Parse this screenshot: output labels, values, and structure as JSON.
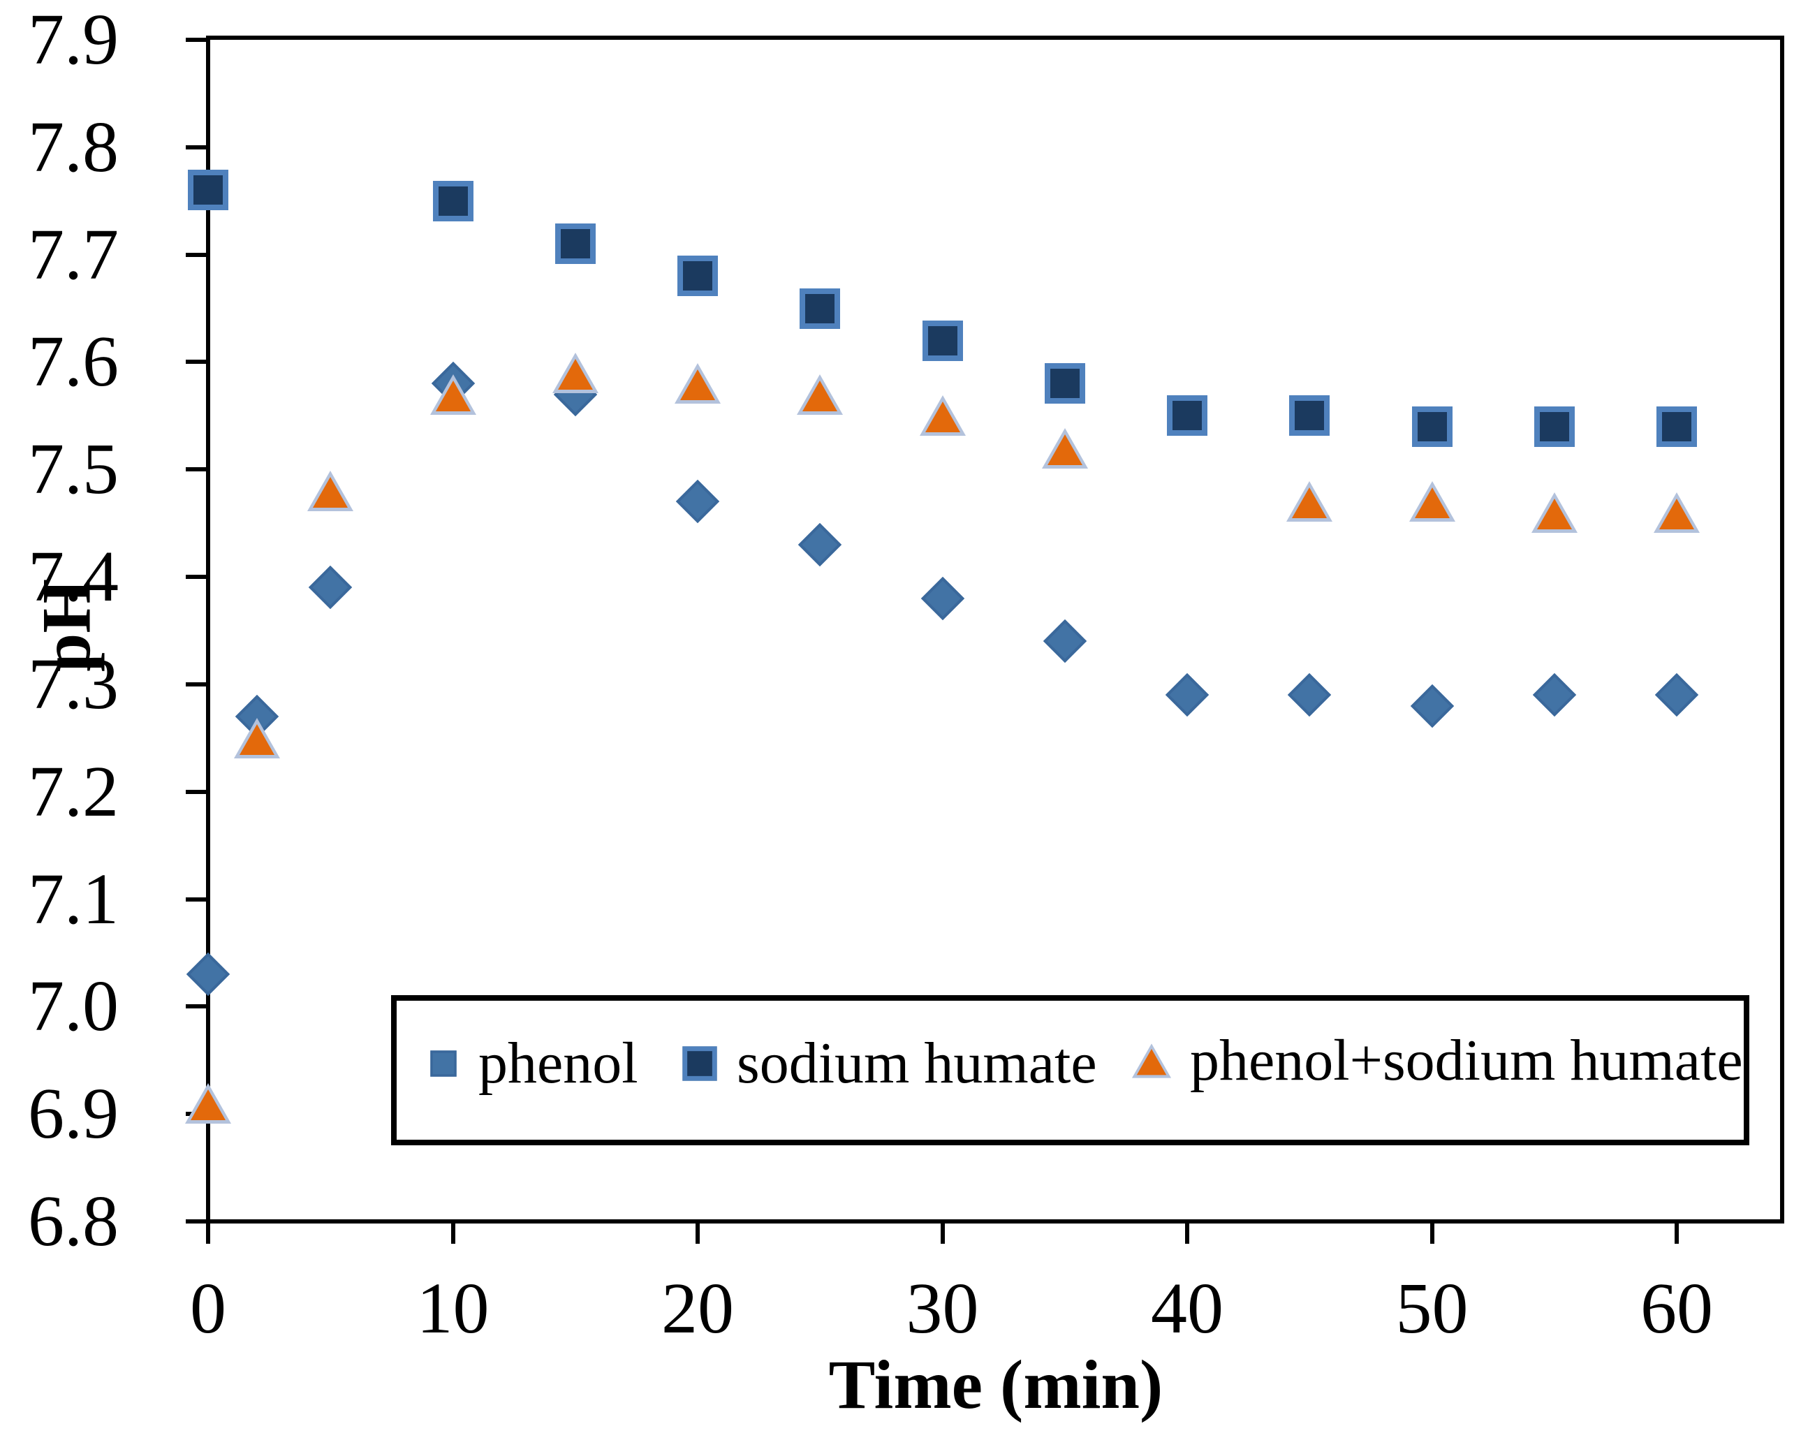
{
  "chart_data": {
    "type": "scatter",
    "title": "",
    "xlabel": "Time (min)",
    "ylabel": "pH",
    "xlim": [
      0,
      64.5
    ],
    "ylim": [
      6.8,
      7.9
    ],
    "x_ticks": [
      "0",
      "10",
      "20",
      "30",
      "40",
      "50",
      "60"
    ],
    "y_ticks": [
      "7.9",
      "7.8",
      "7.7",
      "7.6",
      "7.5",
      "7.4",
      "7.3",
      "7.2",
      "7.1",
      "7.0",
      "6.9",
      "6.8"
    ],
    "grid": false,
    "legend_position": "inside-bottom",
    "series": [
      {
        "name": "phenol",
        "marker": "diamond",
        "color": "#4273A5",
        "border_color": "#3A689B",
        "points": [
          [
            0,
            7.03
          ],
          [
            2,
            7.27
          ],
          [
            5,
            7.39
          ],
          [
            10,
            7.58
          ],
          [
            15,
            7.57
          ],
          [
            20,
            7.47
          ],
          [
            25,
            7.43
          ],
          [
            30,
            7.38
          ],
          [
            35,
            7.34
          ],
          [
            40,
            7.29
          ],
          [
            45,
            7.29
          ],
          [
            50,
            7.28
          ],
          [
            55,
            7.29
          ],
          [
            60,
            7.29
          ]
        ]
      },
      {
        "name": "sodium humate",
        "marker": "square",
        "color": "#1B3A5F",
        "border_color": "#4F81BD",
        "points": [
          [
            0,
            7.76
          ],
          [
            10,
            7.75
          ],
          [
            15,
            7.71
          ],
          [
            20,
            7.68
          ],
          [
            25,
            7.65
          ],
          [
            30,
            7.62
          ],
          [
            35,
            7.58
          ],
          [
            40,
            7.55
          ],
          [
            45,
            7.55
          ],
          [
            50,
            7.54
          ],
          [
            55,
            7.54
          ],
          [
            60,
            7.54
          ]
        ]
      },
      {
        "name": "phenol+sodium humate",
        "marker": "triangle",
        "color": "#E3690B",
        "border_color": "#B3C2DC",
        "points": [
          [
            0,
            6.91
          ],
          [
            2,
            7.25
          ],
          [
            5,
            7.48
          ],
          [
            10,
            7.57
          ],
          [
            15,
            7.59
          ],
          [
            20,
            7.58
          ],
          [
            25,
            7.57
          ],
          [
            30,
            7.55
          ],
          [
            35,
            7.52
          ],
          [
            45,
            7.47
          ],
          [
            50,
            7.47
          ],
          [
            55,
            7.46
          ],
          [
            60,
            7.46
          ]
        ]
      }
    ]
  }
}
